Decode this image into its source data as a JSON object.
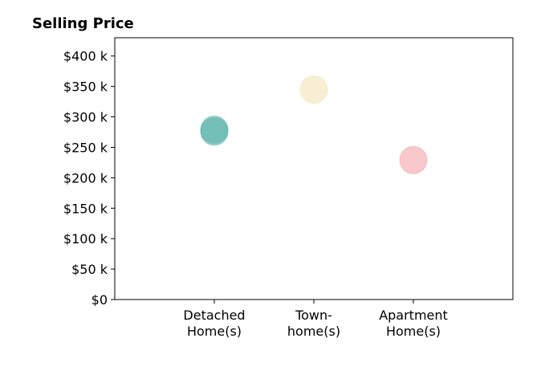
{
  "chart_data": {
    "type": "scatter",
    "title": "Selling Price",
    "xlabel": "",
    "ylabel": "",
    "categories": [
      [
        "Detached",
        "Home(s)"
      ],
      [
        "Town-",
        "home(s)"
      ],
      [
        "Apartment",
        "Home(s)"
      ]
    ],
    "xlim": [
      -1,
      3
    ],
    "ylim": [
      0,
      430
    ],
    "yticks": [
      0,
      50,
      100,
      150,
      200,
      250,
      300,
      350,
      400
    ],
    "ytick_labels": [
      "$0",
      "$50 k",
      "$100 k",
      "$150 k",
      "$200 k",
      "$250 k",
      "$300 k",
      "$350 k",
      "$400 k"
    ],
    "grid": false,
    "legend": "none",
    "points": [
      {
        "category": 0,
        "value": 276,
        "color": "#5ab4ac"
      },
      {
        "category": 0,
        "value": 279,
        "color": "#5ab4ac"
      },
      {
        "category": 1,
        "value": 345,
        "color": "#f3e2b8"
      },
      {
        "category": 2,
        "value": 229,
        "color": "#f4a3aa"
      }
    ]
  }
}
